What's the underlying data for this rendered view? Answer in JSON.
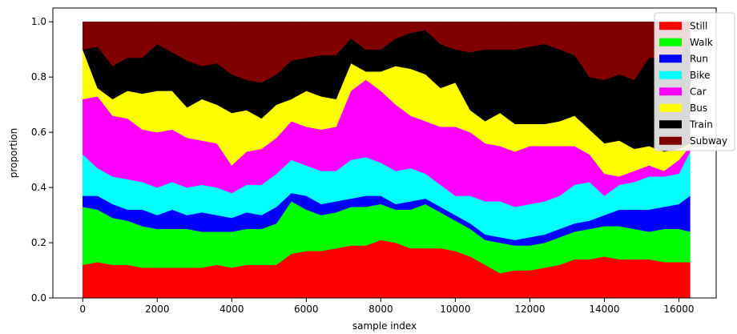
{
  "chart_data": {
    "type": "area",
    "stacked": true,
    "xlabel": "sample index",
    "ylabel": "proportion",
    "xlim": [
      -800,
      17000
    ],
    "ylim": [
      0.0,
      1.05
    ],
    "xticks": [
      0,
      2000,
      4000,
      6000,
      8000,
      10000,
      12000,
      14000,
      16000
    ],
    "yticks": [
      0.0,
      0.2,
      0.4,
      0.6,
      0.8,
      1.0
    ],
    "xtick_labels": [
      "0",
      "2000",
      "4000",
      "6000",
      "8000",
      "10000",
      "12000",
      "14000",
      "16000"
    ],
    "ytick_labels": [
      "0.0",
      "0.2",
      "0.4",
      "0.6",
      "0.8",
      "1.0"
    ],
    "grid": false,
    "legend_position": "top-right",
    "x": [
      0,
      400,
      800,
      1200,
      1600,
      2000,
      2400,
      2800,
      3200,
      3600,
      4000,
      4400,
      4800,
      5200,
      5600,
      6000,
      6400,
      6800,
      7200,
      7600,
      8000,
      8400,
      8800,
      9200,
      9600,
      10000,
      10400,
      10800,
      11200,
      11600,
      12000,
      12400,
      12800,
      13200,
      13600,
      14000,
      14400,
      14800,
      15200,
      15600,
      16000,
      16300
    ],
    "series": [
      {
        "name": "Still",
        "color": "#ff0000",
        "values": [
          0.12,
          0.13,
          0.12,
          0.12,
          0.11,
          0.11,
          0.11,
          0.11,
          0.11,
          0.12,
          0.11,
          0.12,
          0.12,
          0.12,
          0.16,
          0.17,
          0.17,
          0.18,
          0.19,
          0.19,
          0.21,
          0.2,
          0.18,
          0.18,
          0.18,
          0.17,
          0.15,
          0.12,
          0.09,
          0.1,
          0.1,
          0.11,
          0.12,
          0.14,
          0.14,
          0.15,
          0.14,
          0.14,
          0.14,
          0.13,
          0.13,
          0.13
        ]
      },
      {
        "name": "Walk",
        "color": "#00ff00",
        "values": [
          0.21,
          0.19,
          0.17,
          0.16,
          0.15,
          0.14,
          0.14,
          0.14,
          0.13,
          0.12,
          0.13,
          0.13,
          0.13,
          0.15,
          0.19,
          0.15,
          0.13,
          0.13,
          0.14,
          0.14,
          0.13,
          0.12,
          0.14,
          0.16,
          0.13,
          0.11,
          0.1,
          0.09,
          0.11,
          0.09,
          0.09,
          0.09,
          0.1,
          0.1,
          0.11,
          0.11,
          0.12,
          0.11,
          0.1,
          0.12,
          0.12,
          0.11
        ]
      },
      {
        "name": "Run",
        "color": "#0000ff",
        "values": [
          0.04,
          0.05,
          0.05,
          0.04,
          0.06,
          0.05,
          0.07,
          0.05,
          0.07,
          0.06,
          0.05,
          0.06,
          0.05,
          0.06,
          0.03,
          0.05,
          0.04,
          0.04,
          0.03,
          0.04,
          0.03,
          0.02,
          0.03,
          0.02,
          0.02,
          0.02,
          0.02,
          0.02,
          0.02,
          0.02,
          0.03,
          0.03,
          0.03,
          0.03,
          0.03,
          0.04,
          0.06,
          0.07,
          0.08,
          0.08,
          0.09,
          0.13
        ]
      },
      {
        "name": "Bike",
        "color": "#00ffff",
        "values": [
          0.15,
          0.1,
          0.1,
          0.11,
          0.1,
          0.1,
          0.1,
          0.1,
          0.1,
          0.1,
          0.09,
          0.1,
          0.11,
          0.12,
          0.12,
          0.11,
          0.12,
          0.11,
          0.14,
          0.14,
          0.12,
          0.12,
          0.12,
          0.09,
          0.08,
          0.07,
          0.1,
          0.12,
          0.13,
          0.12,
          0.12,
          0.12,
          0.12,
          0.14,
          0.14,
          0.07,
          0.09,
          0.1,
          0.12,
          0.11,
          0.11,
          0.16
        ]
      },
      {
        "name": "Car",
        "color": "#ff00ff",
        "values": [
          0.2,
          0.26,
          0.22,
          0.22,
          0.19,
          0.2,
          0.19,
          0.18,
          0.16,
          0.16,
          0.1,
          0.12,
          0.13,
          0.13,
          0.14,
          0.14,
          0.15,
          0.16,
          0.25,
          0.28,
          0.26,
          0.24,
          0.19,
          0.19,
          0.21,
          0.25,
          0.23,
          0.21,
          0.2,
          0.2,
          0.21,
          0.2,
          0.18,
          0.14,
          0.1,
          0.08,
          0.03,
          0.04,
          0.04,
          0.02,
          0.05,
          0.02
        ]
      },
      {
        "name": "Bus",
        "color": "#ffff00",
        "values": [
          0.18,
          0.03,
          0.06,
          0.1,
          0.13,
          0.15,
          0.14,
          0.11,
          0.15,
          0.14,
          0.19,
          0.15,
          0.11,
          0.12,
          0.08,
          0.13,
          0.12,
          0.1,
          0.1,
          0.03,
          0.07,
          0.14,
          0.17,
          0.17,
          0.14,
          0.16,
          0.08,
          0.08,
          0.12,
          0.1,
          0.08,
          0.08,
          0.09,
          0.11,
          0.09,
          0.11,
          0.13,
          0.08,
          0.07,
          0.07,
          0.04,
          0.01
        ]
      },
      {
        "name": "Train",
        "color": "#000000",
        "values": [
          0.0,
          0.15,
          0.12,
          0.12,
          0.13,
          0.17,
          0.14,
          0.17,
          0.12,
          0.15,
          0.14,
          0.11,
          0.13,
          0.11,
          0.14,
          0.12,
          0.15,
          0.16,
          0.09,
          0.08,
          0.08,
          0.1,
          0.13,
          0.16,
          0.16,
          0.12,
          0.21,
          0.26,
          0.23,
          0.27,
          0.28,
          0.29,
          0.26,
          0.22,
          0.19,
          0.23,
          0.24,
          0.25,
          0.32,
          0.34,
          0.33,
          0.38
        ]
      },
      {
        "name": "Subway",
        "color": "#800000",
        "values": [
          0.1,
          0.09,
          0.16,
          0.13,
          0.13,
          0.08,
          0.11,
          0.14,
          0.16,
          0.15,
          0.19,
          0.21,
          0.22,
          0.19,
          0.14,
          0.13,
          0.12,
          0.12,
          0.06,
          0.1,
          0.1,
          0.06,
          0.04,
          0.03,
          0.08,
          0.1,
          0.11,
          0.1,
          0.1,
          0.1,
          0.09,
          0.08,
          0.1,
          0.12,
          0.2,
          0.21,
          0.19,
          0.21,
          0.13,
          0.13,
          0.13,
          0.06
        ]
      }
    ]
  }
}
